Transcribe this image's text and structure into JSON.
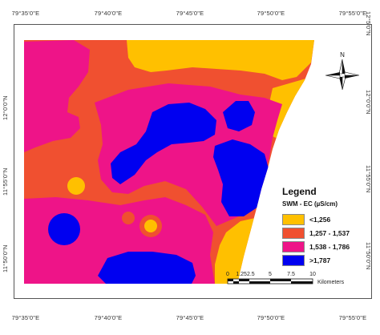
{
  "map": {
    "top_coords": [
      "79°35'0\"E",
      "79°40'0\"E",
      "79°45'0\"E",
      "79°50'0\"E",
      "79°55'0\"E"
    ],
    "bottom_coords": [
      "79°35'0\"E",
      "79°40'0\"E",
      "79°45'0\"E",
      "79°50'0\"E",
      "79°55'0\"E"
    ],
    "left_coords": [
      "12°0'0\"N",
      "11°55'0\"N",
      "11°50'0\"N"
    ],
    "right_coords": [
      "12°5'0\"N",
      "12°0'0\"N",
      "11°55'0\"N",
      "11°50'0\"N"
    ],
    "north_label": "N"
  },
  "legend": {
    "title": "Legend",
    "subtitle": "SWM - EC (µS/cm)",
    "items": [
      {
        "label": "<1,256",
        "color": "#FFC000"
      },
      {
        "label": "1,257 - 1,537",
        "color": "#F05030"
      },
      {
        "label": "1,538 - 1,786",
        "color": "#EE1488"
      },
      {
        "label": ">1,787",
        "color": "#0000F0"
      }
    ]
  },
  "scale": {
    "labels": [
      "0",
      "1.252.5",
      "5",
      "7.5",
      "10"
    ],
    "units": "Kilometers"
  }
}
